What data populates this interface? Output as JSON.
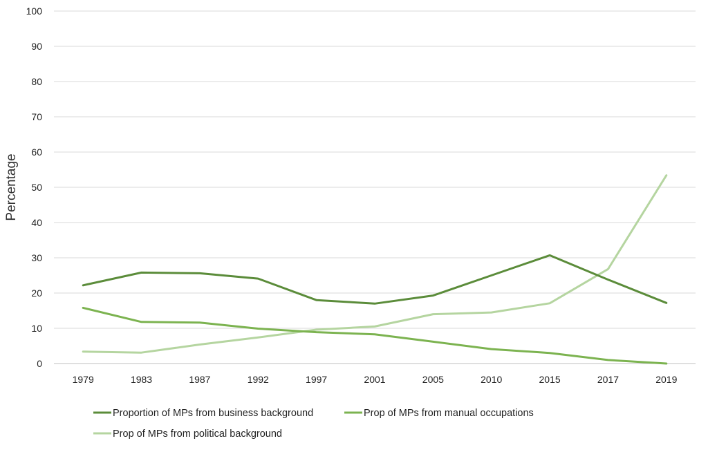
{
  "chart_data": {
    "type": "line",
    "title": "",
    "xlabel": "",
    "ylabel": "Percentage",
    "categories": [
      "1979",
      "1983",
      "1987",
      "1992",
      "1997",
      "2001",
      "2005",
      "2010",
      "2015",
      "2017",
      "2019"
    ],
    "ylim": [
      0,
      100
    ],
    "yticks": [
      "0",
      "10",
      "20",
      "30",
      "40",
      "50",
      "60",
      "70",
      "80",
      "90",
      "100"
    ],
    "grid": true,
    "legend_position": "bottom",
    "series": [
      {
        "name": "Proportion of MPs from business background",
        "color": "#5b8c3a",
        "values": [
          22.2,
          25.8,
          25.6,
          24.1,
          18.0,
          17.0,
          19.3,
          25.0,
          30.7,
          23.8,
          17.2
        ]
      },
      {
        "name": "Prop of MPs from manual occupations",
        "color": "#7cb350",
        "values": [
          15.8,
          11.8,
          11.6,
          9.9,
          8.9,
          8.3,
          6.2,
          4.1,
          3.0,
          1.0,
          0.0
        ]
      },
      {
        "name": "Prop of MPs from political background",
        "color": "#b5d5a0",
        "values": [
          3.4,
          3.1,
          5.4,
          7.4,
          9.6,
          10.5,
          14.0,
          14.5,
          17.1,
          26.8,
          53.4
        ]
      }
    ]
  }
}
